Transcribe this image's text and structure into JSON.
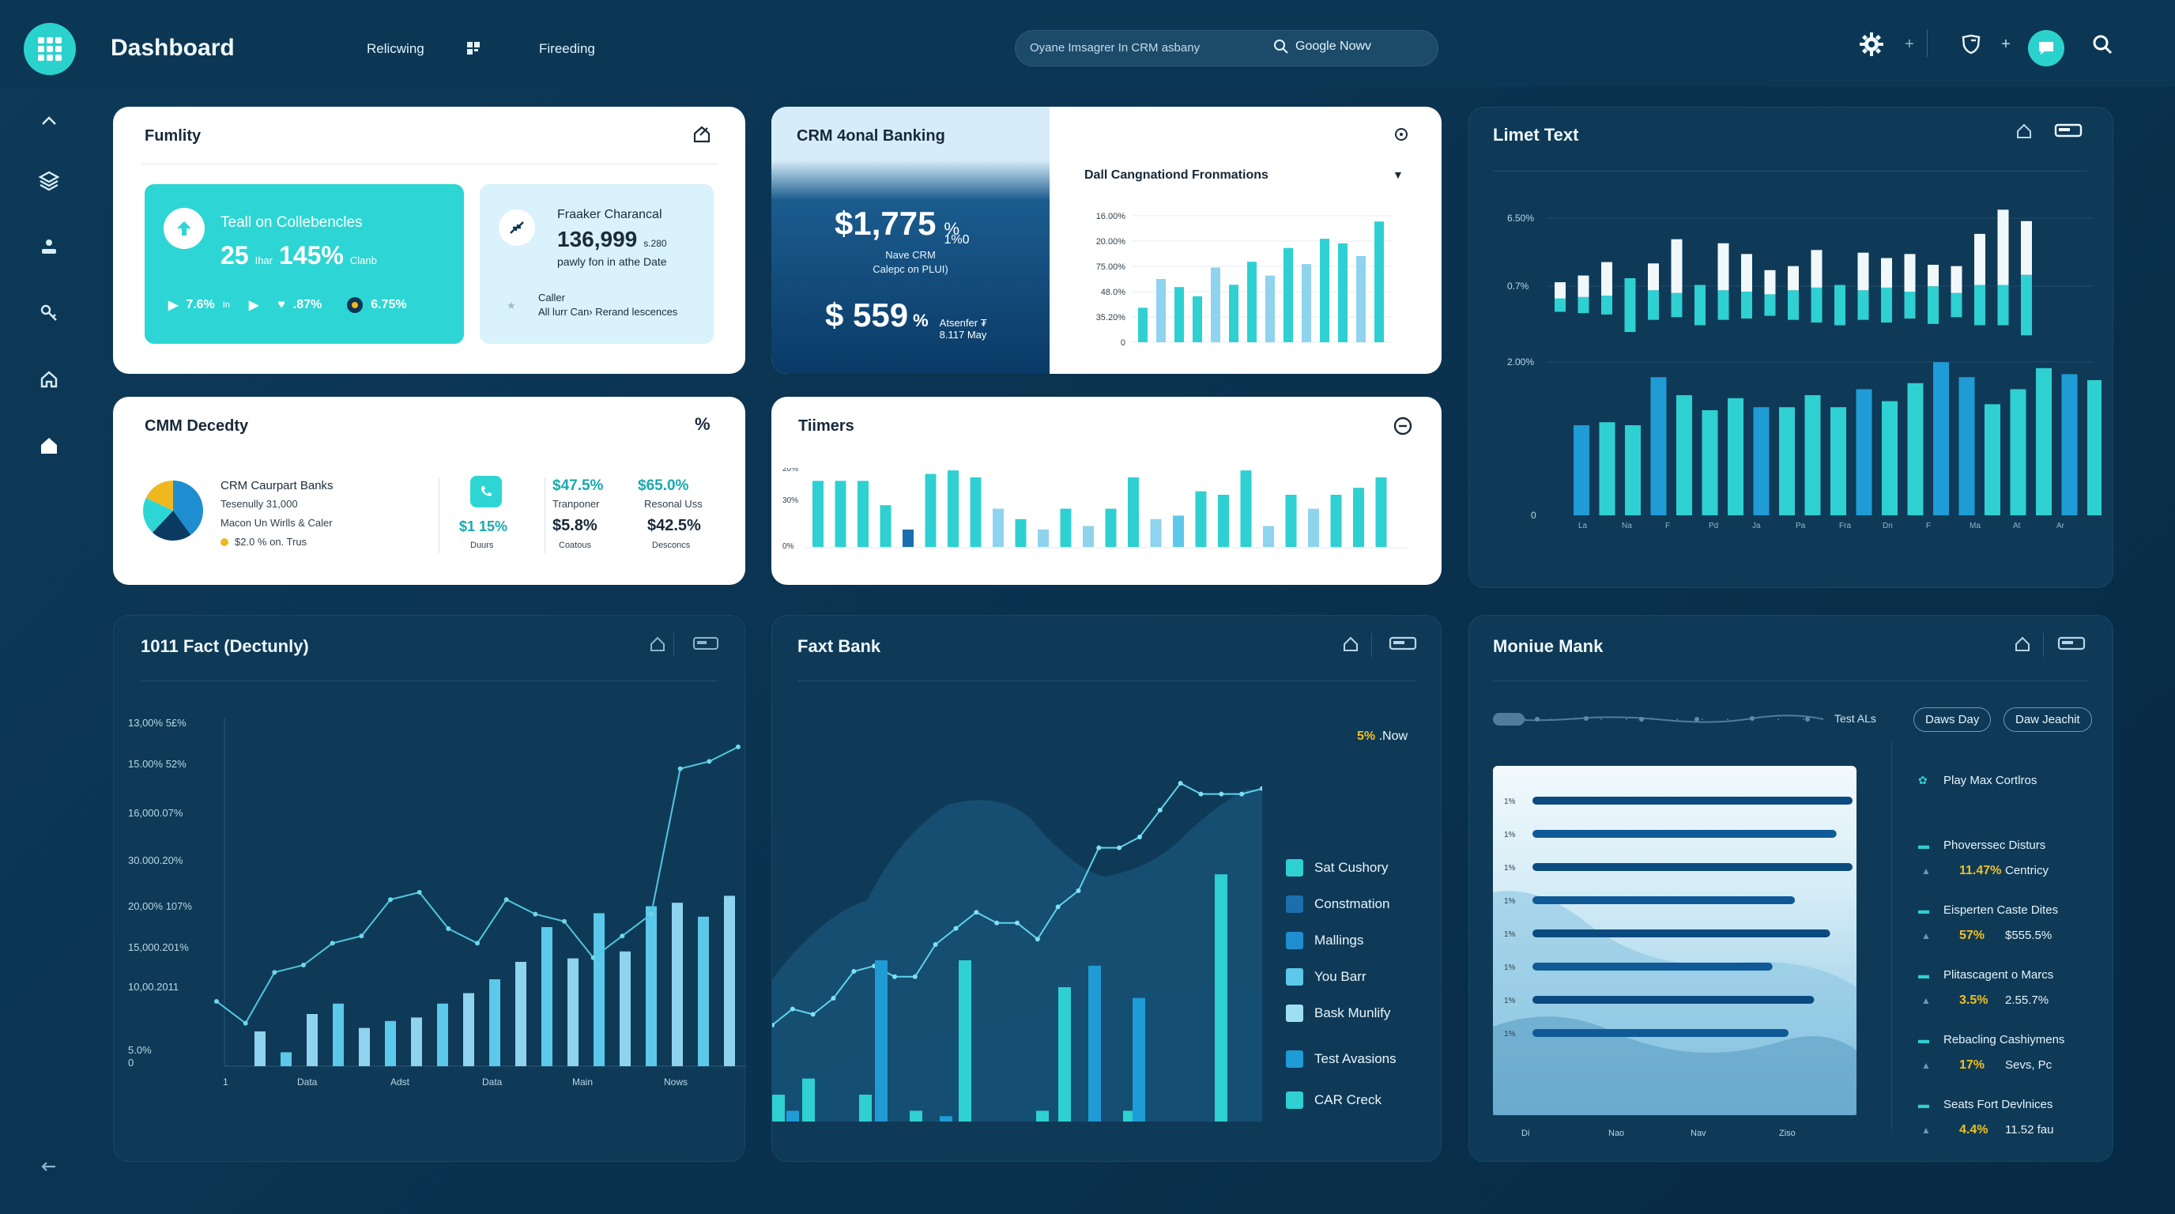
{
  "app": {
    "title": "Dashboard"
  },
  "topbar": {
    "nav": [
      "Relicwing",
      "Fireeding"
    ],
    "search": {
      "placeholder": "Oyane Imsagrer In CRM asbany",
      "button": "Google Nowv"
    }
  },
  "colors": {
    "accent": "#2bd2cd",
    "cyan": "#2fd0d1",
    "blue": "#1f9bd6",
    "light_blue": "#8fd3ee",
    "navy": "#0f3a57"
  },
  "icons": [
    "apps-icon",
    "grid-icon",
    "gear-icon",
    "plus-icon",
    "shield-icon",
    "chat-icon",
    "search-icon",
    "home-icon",
    "layers-icon",
    "upload-icon",
    "key-icon",
    "bell-icon",
    "back-arrow-icon"
  ],
  "card1": {
    "title": "Fumlity",
    "tile1": {
      "title": "Teall on Collebencles",
      "big1": "25",
      "unit1": "Ihar",
      "big2": "145%",
      "unit2": "Clanb",
      "s1": "7.6%",
      "s1u": "In",
      "s2": ".87%",
      "s3": "6.75%"
    },
    "tile2": {
      "title": "Fraaker Charancal",
      "value": "136,999",
      "value_suffix": "s.280",
      "sub": "pawly fon in athe Date",
      "caller_label": "Caller",
      "caller_text": "All lurr Can› Rerand lescences"
    }
  },
  "card2": {
    "title": "CRM 4onal Banking",
    "big1": "$1,775",
    "big1_suffix": "%",
    "big1_suffix2": "1%0",
    "sub1": "Nave CRM",
    "sub2": "Calepc on PLUI)",
    "big2": "$ 559",
    "big2_pct": "%",
    "big2_note1": "Atsenfer ₮",
    "big2_note2": "8.117 May",
    "chart_title": "Dall Cangnationd Fronmations",
    "chart_data": {
      "type": "bar",
      "ylabels": [
        "16.00%",
        "20.00%",
        "75.00%",
        "48.0%",
        "35.20%",
        "0"
      ],
      "series": [
        {
          "values": [
            30,
            55,
            48,
            40,
            65,
            50,
            70,
            58,
            82,
            68,
            90,
            86,
            75,
            105
          ]
        },
        {
          "values": [
            0,
            0,
            0,
            0,
            0,
            0,
            0,
            0,
            0,
            0,
            0,
            0,
            0,
            0
          ]
        }
      ]
    }
  },
  "card3": {
    "title": "Limet Text",
    "y_top": [
      "6.50%",
      "0.7%"
    ],
    "y_bottom": [
      "2.00%",
      "0"
    ],
    "x_labels": [
      "La",
      "Na",
      "F",
      "Pd",
      "Ja",
      "Pa",
      "Fra",
      "Dn",
      "F",
      "Ma",
      "At",
      "Ar"
    ],
    "top_bars": [
      {
        "cyan": 10,
        "white": 12
      },
      {
        "cyan": 12,
        "white": 16
      },
      {
        "cyan": 14,
        "white": 25
      },
      {
        "cyan": 40,
        "white": 0
      },
      {
        "cyan": 22,
        "white": 20
      },
      {
        "cyan": 18,
        "white": 40
      },
      {
        "cyan": 30,
        "white": 0
      },
      {
        "cyan": 22,
        "white": 35
      },
      {
        "cyan": 20,
        "white": 28
      },
      {
        "cyan": 16,
        "white": 18
      },
      {
        "cyan": 22,
        "white": 18
      },
      {
        "cyan": 26,
        "white": 28
      },
      {
        "cyan": 30,
        "white": 0
      },
      {
        "cyan": 22,
        "white": 28
      },
      {
        "cyan": 26,
        "white": 22
      },
      {
        "cyan": 20,
        "white": 28
      },
      {
        "cyan": 28,
        "white": 16
      },
      {
        "cyan": 18,
        "white": 20
      },
      {
        "cyan": 30,
        "white": 38
      },
      {
        "cyan": 30,
        "white": 56
      },
      {
        "cyan": 45,
        "white": 40
      }
    ],
    "bottom_bars": [
      60,
      62,
      60,
      92,
      80,
      70,
      78,
      72,
      72,
      80,
      72,
      84,
      76,
      88,
      102,
      92,
      74,
      84,
      98,
      94,
      90
    ]
  },
  "card4": {
    "title": "CMM Decedty",
    "corner": "%",
    "legend_title": "CRM Caurpart Banks",
    "legend_l1": "Tesenully 31,000",
    "legend_l2": "Macon Un Wirlls & Caler",
    "legend_l3": "$2.0 % on. Trus",
    "pie": {
      "values": [
        40,
        22,
        20,
        18
      ],
      "colors": [
        "#1e8ed0",
        "#0b3b63",
        "#2dd6d4",
        "#f0b820"
      ]
    },
    "k1_val": "$1 15%",
    "k1_lab": "Duurs",
    "k2_val": "$47.5%",
    "k2_sub": "Tranponer",
    "k2_big": "$5.8%",
    "k2_lab": "Coatous",
    "k3_val": "$65.0%",
    "k3_sub": "Resonal Uss",
    "k3_big": "$42.5%",
    "k3_lab": "Desconcs"
  },
  "card5": {
    "title": "Tiimers",
    "ylabels": [
      "20%",
      "30%",
      "0%"
    ],
    "bars": [
      38,
      38,
      38,
      24,
      10,
      42,
      44,
      40,
      22,
      16,
      10,
      22,
      12,
      22,
      40,
      16,
      18,
      32,
      30,
      44,
      12,
      30,
      22,
      30,
      34,
      40
    ]
  },
  "card6": {
    "title": "1011 Fact (Dectunly)",
    "ylabels": [
      "13,00% 5£%",
      "15.00% 52%",
      "16,000.07%",
      "30.000.20%",
      "20,00% 107%",
      "15,000.201%",
      "10,00.2011",
      "5.0%",
      "0"
    ],
    "xlabels": [
      "1",
      "Data",
      "Adst",
      "Data",
      "Main",
      "Nows"
    ],
    "chart_data": {
      "type": "bar",
      "bars": [
        20,
        8,
        30,
        36,
        22,
        26,
        28,
        36,
        42,
        50,
        60,
        80,
        62,
        88,
        66,
        92,
        94,
        86,
        98
      ],
      "line": [
        20,
        14,
        28,
        30,
        36,
        38,
        48,
        50,
        40,
        36,
        48,
        44,
        42,
        32,
        38,
        44,
        84,
        86,
        90
      ]
    }
  },
  "card7": {
    "title": "Faxt Bank",
    "annotation_pct": "5%",
    "annotation_text": ".Now",
    "legend": [
      {
        "label": "Sat Cushory",
        "color": "#2fd0d1"
      },
      {
        "label": "Constmation",
        "color": "#1b6fae"
      },
      {
        "label": "Mallings",
        "color": "#1e8ed0"
      },
      {
        "label": "You Barr",
        "color": "#5cc8ea"
      },
      {
        "label": "Bask Munlify",
        "color": "#9fdff4"
      },
      {
        "label": "Test Avasions",
        "color": "#1f9bd6"
      },
      {
        "label": "CAR Creck",
        "color": "#2fd0d1"
      }
    ],
    "chart_data": {
      "type": "line",
      "line": [
        30,
        36,
        34,
        40,
        50,
        52,
        48,
        48,
        60,
        66,
        72,
        68,
        68,
        62,
        74,
        80,
        96,
        96,
        100,
        110,
        120,
        116,
        116,
        116,
        118
      ],
      "bars": [
        10,
        4,
        16,
        10,
        60,
        4,
        2,
        60,
        4,
        50,
        58,
        4,
        46,
        92
      ]
    }
  },
  "card8": {
    "title": "Moniue Mank",
    "slider_label": "Test ALs",
    "pills": [
      "Daws Day",
      "Daw Jeachit"
    ],
    "chart_labels": [
      "1%",
      "1%",
      "1%",
      "1%",
      "1%",
      "1%",
      "1%",
      "1%"
    ],
    "chart_x": [
      "Di",
      "Nao",
      "Nav",
      "Ziso"
    ],
    "hbars": [
      100,
      95,
      100,
      82,
      93,
      75,
      88,
      80
    ],
    "list": [
      {
        "label": "Play Max Cortlros",
        "value": "",
        "value2": ""
      },
      {
        "label": "Phoverssec Disturs",
        "value": "11.47%",
        "value2": "Centricy"
      },
      {
        "label": "Eisperten Caste Dites",
        "value": "57%",
        "value2": "$555.5%"
      },
      {
        "label": "Plitascagent o Marcs",
        "value": "3.5%",
        "value2": "2.55.7%"
      },
      {
        "label": "Rebacling Cashiymens",
        "value": "17%",
        "value2": "Sevs, Pc"
      },
      {
        "label": "Seats Fort Devlnices",
        "value": "4.4%",
        "value2": "11.52 fau"
      }
    ]
  }
}
